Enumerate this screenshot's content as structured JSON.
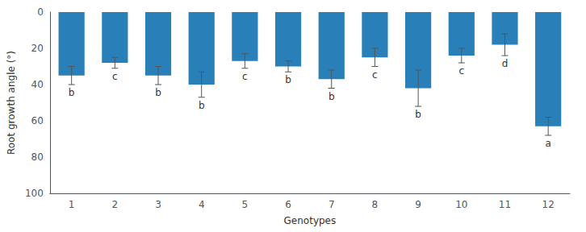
{
  "chart_data": {
    "type": "bar",
    "categories": [
      "1",
      "2",
      "3",
      "4",
      "5",
      "6",
      "7",
      "8",
      "9",
      "10",
      "11",
      "12"
    ],
    "values": [
      35,
      28,
      35,
      40,
      27,
      30,
      37,
      25,
      42,
      24,
      18,
      63
    ],
    "errors": [
      5,
      3,
      5,
      7,
      4,
      3,
      5,
      5,
      10,
      4,
      6,
      5
    ],
    "annotations": [
      {
        "x": "1",
        "text": "b"
      },
      {
        "x": "2",
        "text": "c"
      },
      {
        "x": "3",
        "text": "b"
      },
      {
        "x": "4",
        "text": "b"
      },
      {
        "x": "5",
        "text": "c"
      },
      {
        "x": "6",
        "text": "b"
      },
      {
        "x": "7",
        "text": "b"
      },
      {
        "x": "8",
        "text": "c"
      },
      {
        "x": "9",
        "text": "b"
      },
      {
        "x": "10",
        "text": "c"
      },
      {
        "x": "11",
        "text": "d"
      },
      {
        "x": "12",
        "text": "a"
      }
    ],
    "color": "#2980b9",
    "xlabel": "Genotypes",
    "ylabel": "Root growth angle (°)",
    "ylim": [
      100,
      0
    ],
    "yticks": [
      0,
      20,
      40,
      60,
      80,
      100
    ],
    "grid": false
  }
}
